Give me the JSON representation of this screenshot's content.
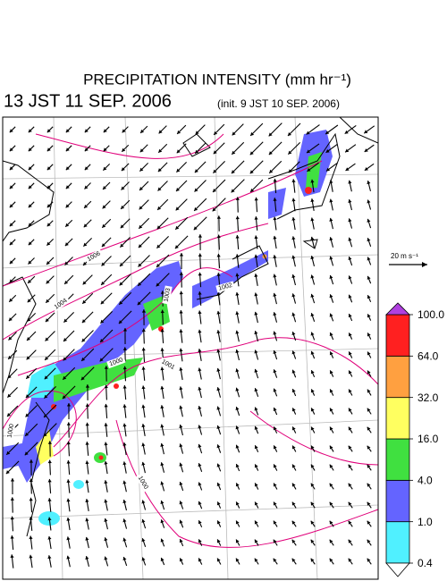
{
  "header": {
    "title": "PRECIPITATION INTENSITY (mm hr⁻¹)",
    "valid_time": "13 JST 11 SEP. 2006",
    "init_time": "(init. 9 JST 10 SEP. 2006)"
  },
  "wind_scale": {
    "label": "20 m s⁻¹"
  },
  "colorbar": {
    "levels": [
      {
        "value": 0.4,
        "label": "0.4"
      },
      {
        "value": 1,
        "label": "1.0"
      },
      {
        "value": 4,
        "label": "4.0"
      },
      {
        "value": 16,
        "label": "16.0"
      },
      {
        "value": 32,
        "label": "32.0"
      },
      {
        "value": 64,
        "label": "64.0"
      },
      {
        "value": 100,
        "label": "100.0"
      }
    ],
    "colors": [
      "#50f0ff",
      "#6464ff",
      "#40e040",
      "#ffff60",
      "#ffa040",
      "#ff2020"
    ],
    "over_color": "#b040e0",
    "under_color": "#ffffff"
  },
  "isobars": {
    "labels": [
      "1006",
      "1004",
      "1002",
      "1003",
      "1000",
      "1001",
      "1000",
      "1000"
    ]
  }
}
